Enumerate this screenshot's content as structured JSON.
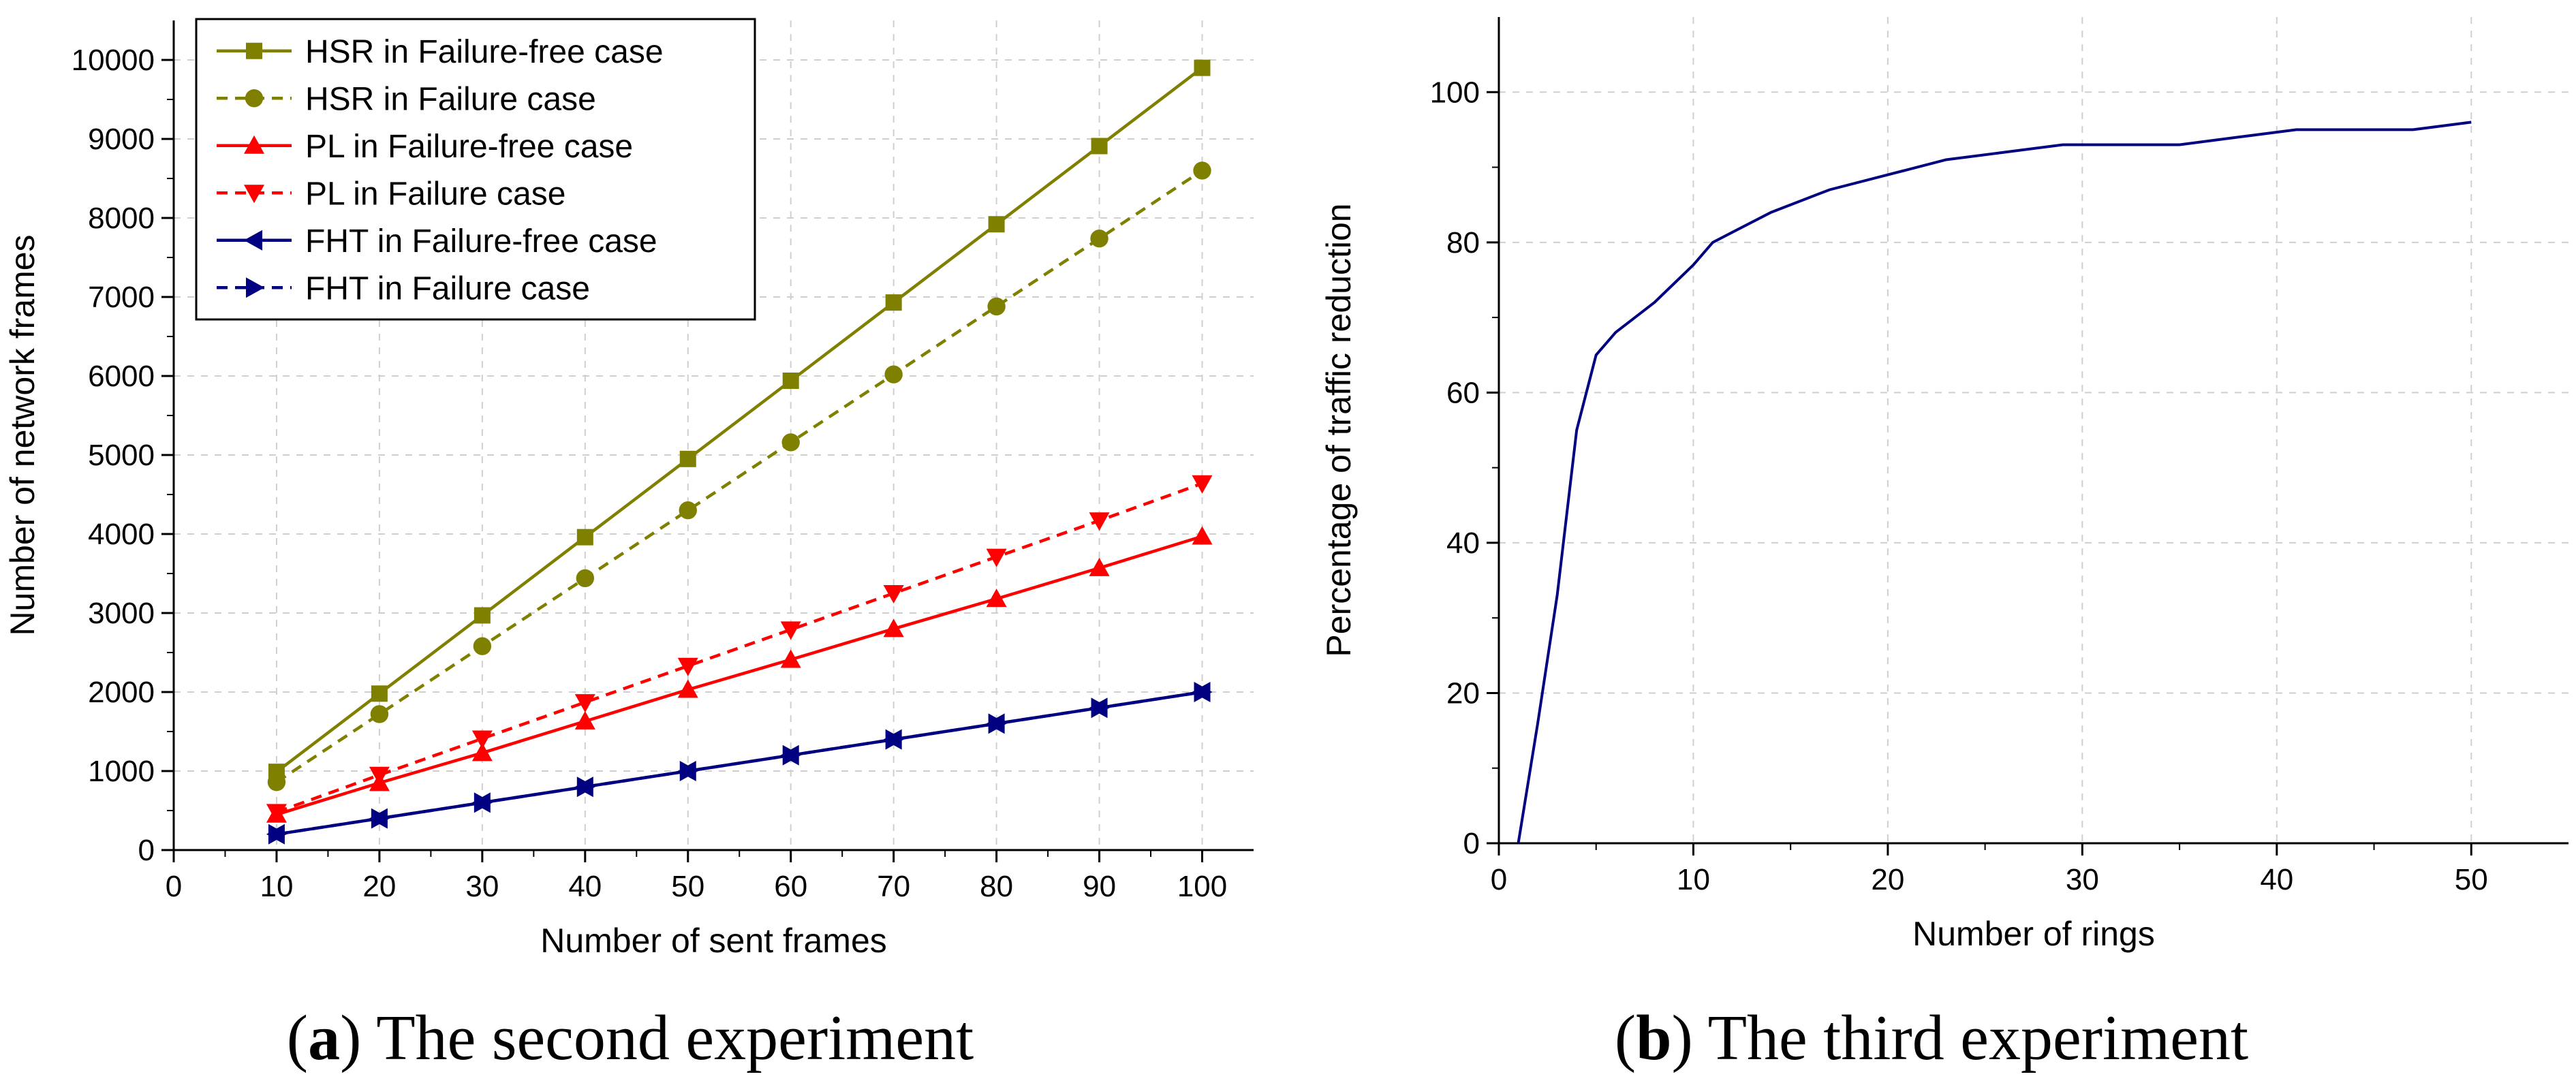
{
  "chart_data": [
    {
      "type": "line",
      "panel": "a",
      "title": "",
      "xlabel": "Number of sent frames",
      "ylabel": "Number of network frames",
      "xlim": [
        0,
        105
      ],
      "ylim": [
        0,
        10500
      ],
      "xticks": [
        0,
        10,
        20,
        30,
        40,
        50,
        60,
        70,
        80,
        90,
        100
      ],
      "yticks": [
        0,
        1000,
        2000,
        3000,
        4000,
        5000,
        6000,
        7000,
        8000,
        9000,
        10000
      ],
      "grid": true,
      "legend_position": "top-left",
      "x": [
        10,
        20,
        30,
        40,
        50,
        60,
        70,
        80,
        90,
        100
      ],
      "series": [
        {
          "name": "HSR in Failure-free case",
          "color": "#808000",
          "dash": "solid",
          "marker": "square",
          "values": [
            990,
            1980,
            2970,
            3960,
            4950,
            5940,
            6930,
            7920,
            8910,
            9900
          ]
        },
        {
          "name": "HSR in Failure case",
          "color": "#808000",
          "dash": "dashed",
          "marker": "circle",
          "values": [
            860,
            1720,
            2580,
            3440,
            4300,
            5160,
            6020,
            6880,
            7740,
            8600
          ]
        },
        {
          "name": "PL in Failure-free case",
          "color": "#ff0000",
          "dash": "solid",
          "marker": "triangle-up",
          "values": [
            450,
            850,
            1230,
            1630,
            2030,
            2410,
            2800,
            3180,
            3570,
            3970
          ]
        },
        {
          "name": "PL in Failure case",
          "color": "#ff0000",
          "dash": "dashed",
          "marker": "triangle-down",
          "values": [
            480,
            950,
            1410,
            1870,
            2330,
            2790,
            3250,
            3710,
            4170,
            4640
          ]
        },
        {
          "name": "FHT in Failure-free case",
          "color": "#000080",
          "dash": "solid",
          "marker": "triangle-left",
          "values": [
            200,
            400,
            600,
            800,
            1000,
            1200,
            1400,
            1600,
            1800,
            2000
          ]
        },
        {
          "name": "FHT in Failure case",
          "color": "#000080",
          "dash": "dashed",
          "marker": "triangle-right",
          "values": [
            200,
            400,
            600,
            800,
            1000,
            1200,
            1400,
            1600,
            1800,
            2000
          ]
        }
      ],
      "caption": {
        "letter": "a",
        "text": "The second experiment"
      }
    },
    {
      "type": "line",
      "panel": "b",
      "title": "",
      "xlabel": "Number of rings",
      "ylabel": "Percentage of traffic reduction",
      "xlim": [
        0,
        55
      ],
      "ylim": [
        0,
        110
      ],
      "xticks": [
        0,
        10,
        20,
        30,
        40,
        50
      ],
      "yticks": [
        0,
        20,
        40,
        60,
        80,
        100
      ],
      "grid": true,
      "x": [
        1,
        2,
        3,
        4,
        5,
        6,
        7,
        8,
        9,
        10,
        11,
        14,
        17,
        20,
        23,
        26,
        29,
        32,
        35,
        38,
        41,
        44,
        47,
        50
      ],
      "series": [
        {
          "name": "traffic reduction",
          "color": "#000080",
          "dash": "solid",
          "values": [
            0,
            16,
            33,
            55,
            65,
            68,
            70,
            72,
            74.5,
            77,
            80,
            84,
            87,
            89,
            91,
            92,
            93,
            93,
            93,
            94,
            95,
            95,
            95,
            96
          ]
        }
      ],
      "caption": {
        "letter": "b",
        "text": "The third experiment"
      }
    }
  ]
}
